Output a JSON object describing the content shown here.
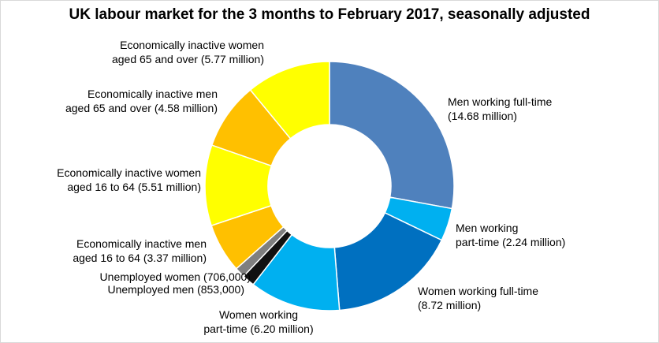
{
  "chart_data": {
    "type": "pie",
    "variant": "donut",
    "title": "UK labour market for the 3 months to February 2017, seasonally adjusted",
    "unit": "million",
    "slices": [
      {
        "lines": [
          "Men working full-time",
          "(14.68 million)"
        ],
        "value": 14.68,
        "color": "#4f81bd"
      },
      {
        "lines": [
          "Men working",
          "part-time (2.24 million)"
        ],
        "value": 2.24,
        "color": "#00b0f0"
      },
      {
        "lines": [
          "Women working full-time",
          "(8.72 million)"
        ],
        "value": 8.72,
        "color": "#0070c0"
      },
      {
        "lines": [
          "Women working",
          "part-time (6.20 million)"
        ],
        "value": 6.2,
        "color": "#00b0f0"
      },
      {
        "lines": [
          "Unemployed men (853,000)"
        ],
        "value": 0.853,
        "color": "#111111"
      },
      {
        "lines": [
          "Unemployed women (706,000)"
        ],
        "value": 0.706,
        "color": "#7f7f7f"
      },
      {
        "lines": [
          "Economically inactive men",
          "aged 16 to 64 (3.37 million)"
        ],
        "value": 3.37,
        "color": "#ffc000"
      },
      {
        "lines": [
          "Economically inactive women",
          "aged 16 to 64 (5.51 million)"
        ],
        "value": 5.51,
        "color": "#ffff00"
      },
      {
        "lines": [
          "Economically inactive men",
          "aged 65 and over (4.58 million)"
        ],
        "value": 4.58,
        "color": "#ffc000"
      },
      {
        "lines": [
          "Economically inactive women",
          "aged 65 and over (5.77 million)"
        ],
        "value": 5.77,
        "color": "#ffff00"
      }
    ],
    "legend": "none"
  }
}
